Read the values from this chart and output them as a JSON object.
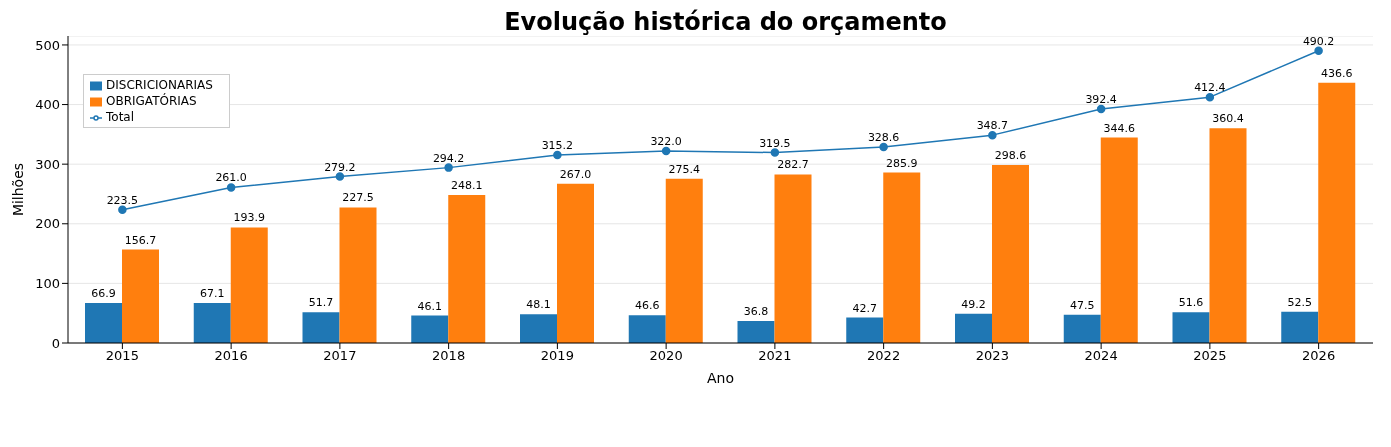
{
  "chart_data": {
    "type": "bar",
    "title": "Evolução histórica do orçamento",
    "xlabel": "Ano",
    "ylabel": "Milhões",
    "categories": [
      "2015",
      "2016",
      "2017",
      "2018",
      "2019",
      "2020",
      "2021",
      "2022",
      "2023",
      "2024",
      "2025",
      "2026"
    ],
    "series": [
      {
        "name": "Total",
        "type": "line",
        "color": "#1f77b4",
        "marker": "circle",
        "values": [
          223.5,
          261.0,
          279.2,
          294.2,
          315.2,
          322.0,
          319.5,
          328.6,
          348.7,
          392.4,
          412.4,
          490.2
        ],
        "value_labels": [
          "223.5",
          "261.0",
          "279.2",
          "294.2",
          "315.2",
          "322.0",
          "319.5",
          "328.6",
          "348.7",
          "392.4",
          "412.4",
          "490.2"
        ]
      },
      {
        "name": "DISCRICIONARIAS",
        "color": "#1f77b4",
        "values": [
          66.9,
          67.1,
          51.7,
          46.1,
          48.1,
          46.6,
          36.8,
          42.7,
          49.2,
          47.5,
          51.6,
          52.5
        ],
        "value_labels": [
          "66.9",
          "67.1",
          "51.7",
          "46.1",
          "48.1",
          "46.6",
          "36.8",
          "42.7",
          "49.2",
          "47.5",
          "51.6",
          "52.5"
        ]
      },
      {
        "name": "OBRIGATÓRIAS",
        "color": "#ff7f0e",
        "values": [
          156.7,
          193.9,
          227.5,
          248.1,
          267.0,
          275.4,
          282.7,
          285.9,
          298.6,
          344.6,
          360.4,
          436.6
        ],
        "value_labels": [
          "156.7",
          "193.9",
          "227.5",
          "248.1",
          "267.0",
          "275.4",
          "282.7",
          "285.9",
          "298.6",
          "344.6",
          "360.4",
          "436.6"
        ]
      }
    ],
    "ylim": [
      0,
      515
    ],
    "yticks": [
      0,
      100,
      200,
      300,
      400,
      500
    ],
    "grid": "y",
    "legend": "top left"
  }
}
